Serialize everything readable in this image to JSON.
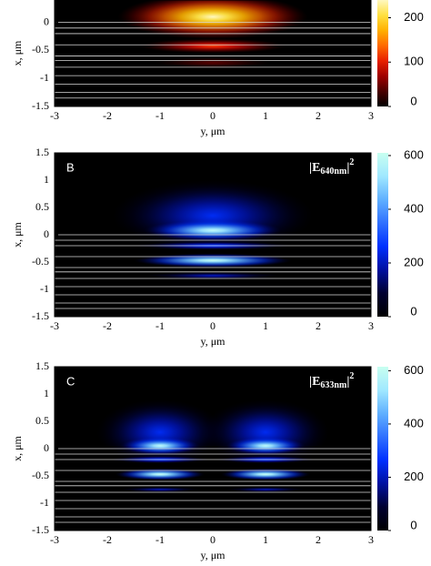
{
  "chart_data": [
    {
      "type": "heatmap",
      "xlabel": "y, μm",
      "ylabel": "x, μm",
      "xlim": [
        -3,
        3
      ],
      "xticks": [
        -3,
        -2,
        -1,
        0,
        1,
        2,
        3
      ],
      "ylim": [
        -1.5,
        0.4
      ],
      "yticks": [
        -1.5,
        -1,
        -0.5,
        0
      ],
      "clim": [
        0,
        240
      ],
      "cticks": [
        0,
        100,
        200
      ],
      "colormap": [
        "#000000",
        "#4a0000",
        "#a00000",
        "#e82000",
        "#ff6a00",
        "#ffb000",
        "#ffe040",
        "#fff8c0"
      ],
      "layers": [
        0,
        -0.1,
        -0.2,
        -0.4,
        -0.6,
        -0.68,
        -0.8,
        -0.95,
        -1.1,
        -1.25,
        -1.35
      ],
      "lobes": {
        "y": [
          0,
          0,
          0
        ],
        "x": [
          0.1,
          -0.42,
          -0.72
        ],
        "width": [
          3.6,
          2.8,
          2.2
        ],
        "height": [
          0.8,
          0.26,
          0.2
        ],
        "values": [
          240,
          120,
          40
        ]
      }
    },
    {
      "type": "heatmap",
      "panel_label": "B",
      "field_label": {
        "text": "|E",
        "sub": "640nm",
        "close": "|",
        "sup": "2"
      },
      "xlabel": "y, μm",
      "ylabel": "x, μm",
      "xlim": [
        -3,
        3
      ],
      "xticks": [
        -3,
        -2,
        -1,
        0,
        1,
        2,
        3
      ],
      "ylim": [
        -1.5,
        1.5
      ],
      "yticks": [
        -1.5,
        -1,
        -0.5,
        0,
        0.5,
        1,
        1.5
      ],
      "clim": [
        0,
        610
      ],
      "cticks": [
        0,
        200,
        400,
        600
      ],
      "colormap": [
        "#000000",
        "#000030",
        "#0010a0",
        "#0030ff",
        "#3070ff",
        "#60b0ff",
        "#a0e8ff",
        "#c8fff0"
      ],
      "layers": [
        0,
        -0.1,
        -0.2,
        -0.4,
        -0.6,
        -0.68,
        -0.8,
        -0.95,
        -1.1,
        -1.25,
        -1.35
      ],
      "lobes": {
        "y": [
          0,
          0,
          0,
          0,
          0
        ],
        "x": [
          0.35,
          0.08,
          -0.2,
          -0.47,
          -0.75
        ],
        "width": [
          3.8,
          2.6,
          3.0,
          3.0,
          2.6
        ],
        "height": [
          1.3,
          0.38,
          0.16,
          0.26,
          0.14
        ],
        "values": [
          250,
          600,
          300,
          610,
          200
        ]
      }
    },
    {
      "type": "heatmap",
      "panel_label": "C",
      "field_label": {
        "text": "|E",
        "sub": "633nm",
        "close": "|",
        "sup": "2"
      },
      "xlabel": "y, μm",
      "ylabel": "x, μm",
      "xlim": [
        -3,
        3
      ],
      "xticks": [
        -3,
        -2,
        -1,
        0,
        1,
        2,
        3
      ],
      "ylim": [
        -1.5,
        1.5
      ],
      "yticks": [
        -1.5,
        -1,
        -0.5,
        0,
        0.5,
        1,
        1.5
      ],
      "clim": [
        0,
        615
      ],
      "cticks": [
        0,
        200,
        400,
        600
      ],
      "colormap": [
        "#000000",
        "#000030",
        "#0010a0",
        "#0030ff",
        "#3070ff",
        "#60b0ff",
        "#a0e8ff",
        "#c8fff0"
      ],
      "layers": [
        0,
        -0.1,
        -0.2,
        -0.4,
        -0.6,
        -0.68,
        -0.8,
        -0.95,
        -1.1,
        -1.25,
        -1.35
      ],
      "lobes": {
        "y": [
          -1,
          1,
          -1,
          1,
          -1,
          1,
          -1,
          1,
          -1,
          1
        ],
        "x": [
          0.3,
          0.3,
          0.05,
          0.05,
          -0.2,
          -0.2,
          -0.47,
          -0.47,
          -0.75,
          -0.75
        ],
        "width": [
          2.4,
          2.4,
          1.5,
          1.5,
          1.9,
          1.9,
          1.7,
          1.7,
          1.5,
          1.5
        ],
        "height": [
          1.2,
          1.2,
          0.32,
          0.32,
          0.14,
          0.14,
          0.22,
          0.22,
          0.1,
          0.1
        ],
        "values": [
          250,
          250,
          600,
          600,
          300,
          300,
          615,
          615,
          200,
          200
        ]
      }
    }
  ]
}
